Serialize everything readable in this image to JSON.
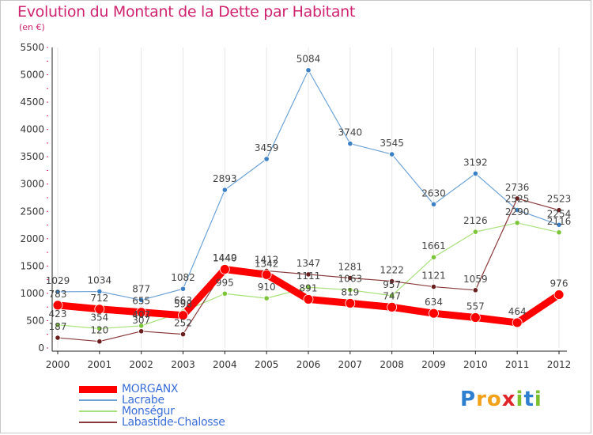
{
  "title": "Evolution du Montant de la Dette par Habitant",
  "subtitle": "(en €)",
  "brand": {
    "text": "Proxiti",
    "letters": [
      {
        "ch": "P",
        "color": "#2e7fd0"
      },
      {
        "ch": "r",
        "color": "#f2a21a"
      },
      {
        "ch": "o",
        "color": "#f2a21a"
      },
      {
        "ch": "x",
        "color": "#e0262a"
      },
      {
        "ch": "i",
        "color": "#7cbf2f"
      },
      {
        "ch": "t",
        "color": "#2e7fd0"
      },
      {
        "ch": "i",
        "color": "#7cbf2f"
      }
    ]
  },
  "chart_data": {
    "type": "line",
    "title": "Evolution du Montant de la Dette par Habitant",
    "ylabel": "(en €)",
    "xlabel": "",
    "ylim": [
      0,
      5500
    ],
    "yticks": [
      0,
      500,
      1000,
      1500,
      2000,
      2500,
      3000,
      3500,
      4000,
      4500,
      5000,
      5500
    ],
    "grid": "vertical",
    "legend_position": "bottom-left",
    "categories": [
      "2000",
      "2001",
      "2002",
      "2003",
      "2004",
      "2005",
      "2006",
      "2007",
      "2008",
      "2009",
      "2010",
      "2011",
      "2012"
    ],
    "series": [
      {
        "name": "Lacrabe",
        "color": "#6fa3d6",
        "marker": "#3b7fc4",
        "values": [
          1029,
          1034,
          877,
          1082,
          2893,
          3459,
          5084,
          3740,
          3545,
          2630,
          3192,
          2525,
          2254
        ]
      },
      {
        "name": "Monségur",
        "color": "#a8e07a",
        "marker": "#7cc43a",
        "values": [
          423,
          354,
          407,
          663,
          995,
          910,
          1111,
          1063,
          957,
          1661,
          2126,
          2290,
          2116
        ]
      },
      {
        "name": "Labastide-Chalosse",
        "color": "#8a3a3a",
        "marker": "#6a1e1e",
        "values": [
          187,
          120,
          307,
          252,
          1449,
          1412,
          1347,
          1281,
          1222,
          1121,
          1059,
          2736,
          2523
        ]
      },
      {
        "name": "MORGANX",
        "color": "#ff0000",
        "marker": "#ff0000",
        "values": [
          783,
          712,
          655,
          598,
          1440,
          1342,
          891,
          819,
          747,
          634,
          557,
          464,
          976
        ]
      }
    ]
  }
}
